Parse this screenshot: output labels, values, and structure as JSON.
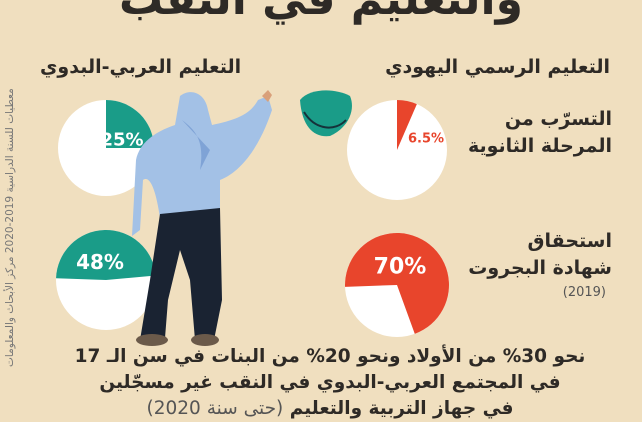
{
  "title": "والتعليم في النقب",
  "columns": {
    "arab_bedouin": "التعليم العربي-البدوي",
    "jewish_state": "التعليم الرسمي اليهودي"
  },
  "rows": [
    {
      "label_line1": "التسرّب من",
      "label_line2": "المرحلة الثانوية"
    },
    {
      "label_line1": "استحقاق",
      "label_line2": "شهادة البجروت",
      "note": "(2019)"
    }
  ],
  "side_note": "معطيات للسنة الدراسية 2019-2020 مركز الأبحاث والمعلومات",
  "bottom_text": {
    "line1": "نحو 30% من الأولاد ونحو 20% من البنات في سن الـ 17",
    "line2": "في المجتمع العربي-البدوي في النقب غير مسجّلين",
    "line3": "في جهاز التربية والتعليم",
    "line3_paren": "(حتى سنة 2020)"
  },
  "colors": {
    "background": "#f0dfbf",
    "arab_bedouin": "#1a9c88",
    "jewish_state": "#e8452c",
    "pie_base": "#ffffff"
  },
  "chart_data": [
    {
      "type": "pie",
      "group": "التعليم العربي-البدوي",
      "metric": "التسرّب من المرحلة الثانوية",
      "value": 25,
      "label": "25%"
    },
    {
      "type": "pie",
      "group": "التعليم العربي-البدوي",
      "metric": "استحقاق شهادة البجروت",
      "value": 48,
      "label": "48%"
    },
    {
      "type": "pie",
      "group": "التعليم الرسمي اليهودي",
      "metric": "التسرّب من المرحلة الثانوية",
      "value": 6.5,
      "label": "6.5%"
    },
    {
      "type": "pie",
      "group": "التعليم الرسمي اليهودي",
      "metric": "استحقاق شهادة البجروت",
      "value": 70,
      "label": "70%"
    }
  ]
}
